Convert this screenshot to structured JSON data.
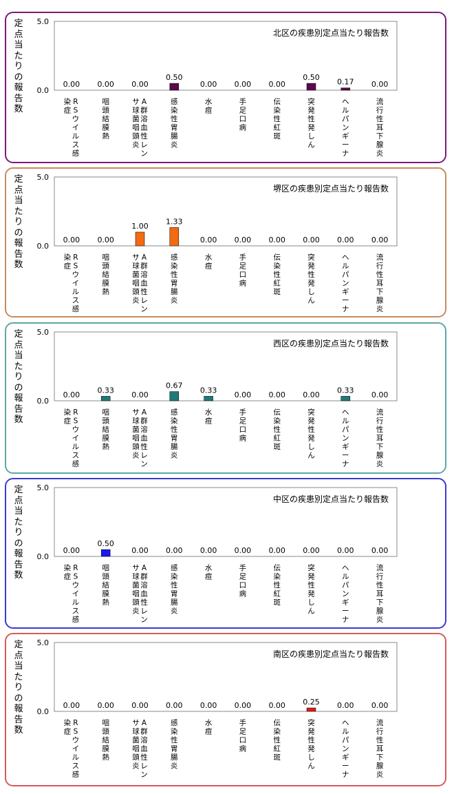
{
  "chart_data": [
    {
      "type": "bar",
      "title": "北区の疾患別定点当たり報告数",
      "ylabel": "定点当たりの報告数",
      "ylim": [
        0,
        5.0
      ],
      "ytick_labels": [
        "0.0",
        "5.0"
      ],
      "categories": [
        "RSウイルス感染症",
        "咽頭結膜熱",
        "A群溶血性レンサ球菌咽頭炎",
        "感染性胃腸炎",
        "水痘",
        "手足口病",
        "伝染性紅斑",
        "突発性発しん",
        "ヘルパンギーナ",
        "流行性耳下腺炎"
      ],
      "values": [
        0.0,
        0.0,
        0.0,
        0.5,
        0.0,
        0.0,
        0.0,
        0.5,
        0.17,
        0.0
      ],
      "value_labels": [
        "0.00",
        "0.00",
        "0.00",
        "0.50",
        "0.00",
        "0.00",
        "0.00",
        "0.50",
        "0.17",
        "0.00"
      ],
      "bar_color": "#5a0a4e",
      "border_color": "#7a1a7a"
    },
    {
      "type": "bar",
      "title": "堺区の疾患別定点当たり報告数",
      "ylabel": "定点当たりの報告数",
      "ylim": [
        0,
        5.0
      ],
      "ytick_labels": [
        "0.0",
        "5.0"
      ],
      "categories": [
        "RSウイルス感染症",
        "咽頭結膜熱",
        "A群溶血性レンサ球菌咽頭炎",
        "感染性胃腸炎",
        "水痘",
        "手足口病",
        "伝染性紅斑",
        "突発性発しん",
        "ヘルパンギーナ",
        "流行性耳下腺炎"
      ],
      "values": [
        0.0,
        0.0,
        1.0,
        1.33,
        0.0,
        0.0,
        0.0,
        0.0,
        0.0,
        0.0
      ],
      "value_labels": [
        "0.00",
        "0.00",
        "1.00",
        "1.33",
        "0.00",
        "0.00",
        "0.00",
        "0.00",
        "0.00",
        "0.00"
      ],
      "bar_color": "#f26a12",
      "border_color": "#c98a5a"
    },
    {
      "type": "bar",
      "title": "西区の疾患別定点当たり報告数",
      "ylabel": "定点当たりの報告数",
      "ylim": [
        0,
        5.0
      ],
      "ytick_labels": [
        "0.0",
        "5.0"
      ],
      "categories": [
        "RSウイルス感染症",
        "咽頭結膜熱",
        "A群溶血性レンサ球菌咽頭炎",
        "感染性胃腸炎",
        "水痘",
        "手足口病",
        "伝染性紅斑",
        "突発性発しん",
        "ヘルパンギーナ",
        "流行性耳下腺炎"
      ],
      "values": [
        0.0,
        0.33,
        0.0,
        0.67,
        0.33,
        0.0,
        0.0,
        0.0,
        0.33,
        0.0
      ],
      "value_labels": [
        "0.00",
        "0.33",
        "0.00",
        "0.67",
        "0.33",
        "0.00",
        "0.00",
        "0.00",
        "0.33",
        "0.00"
      ],
      "bar_color": "#1f7a78",
      "border_color": "#5aa8a6"
    },
    {
      "type": "bar",
      "title": "中区の疾患別定点当たり報告数",
      "ylabel": "定点当たりの報告数",
      "ylim": [
        0,
        5.0
      ],
      "ytick_labels": [
        "0.0",
        "5.0"
      ],
      "categories": [
        "RSウイルス感染症",
        "咽頭結膜熱",
        "A群溶血性レンサ球菌咽頭炎",
        "感染性胃腸炎",
        "水痘",
        "手足口病",
        "伝染性紅斑",
        "突発性発しん",
        "ヘルパンギーナ",
        "流行性耳下腺炎"
      ],
      "values": [
        0.0,
        0.5,
        0.0,
        0.0,
        0.0,
        0.0,
        0.0,
        0.0,
        0.0,
        0.0
      ],
      "value_labels": [
        "0.00",
        "0.50",
        "0.00",
        "0.00",
        "0.00",
        "0.00",
        "0.00",
        "0.00",
        "0.00",
        "0.00"
      ],
      "bar_color": "#1a1aee",
      "border_color": "#3a3ad0"
    },
    {
      "type": "bar",
      "title": "南区の疾患別定点当たり報告数",
      "ylabel": "定点当たりの報告数",
      "ylim": [
        0,
        5.0
      ],
      "ytick_labels": [
        "0.0",
        "5.0"
      ],
      "categories": [
        "RSウイルス感染症",
        "咽頭結膜熱",
        "A群溶血性レンサ球菌咽頭炎",
        "感染性胃腸炎",
        "水痘",
        "手足口病",
        "伝染性紅斑",
        "突発性発しん",
        "ヘルパンギーナ",
        "流行性耳下腺炎"
      ],
      "values": [
        0.0,
        0.0,
        0.0,
        0.0,
        0.0,
        0.0,
        0.0,
        0.25,
        0.0,
        0.0
      ],
      "value_labels": [
        "0.00",
        "0.00",
        "0.00",
        "0.00",
        "0.00",
        "0.00",
        "0.00",
        "0.25",
        "0.00",
        "0.00"
      ],
      "bar_color": "#e01a1a",
      "border_color": "#d85a5a"
    }
  ]
}
